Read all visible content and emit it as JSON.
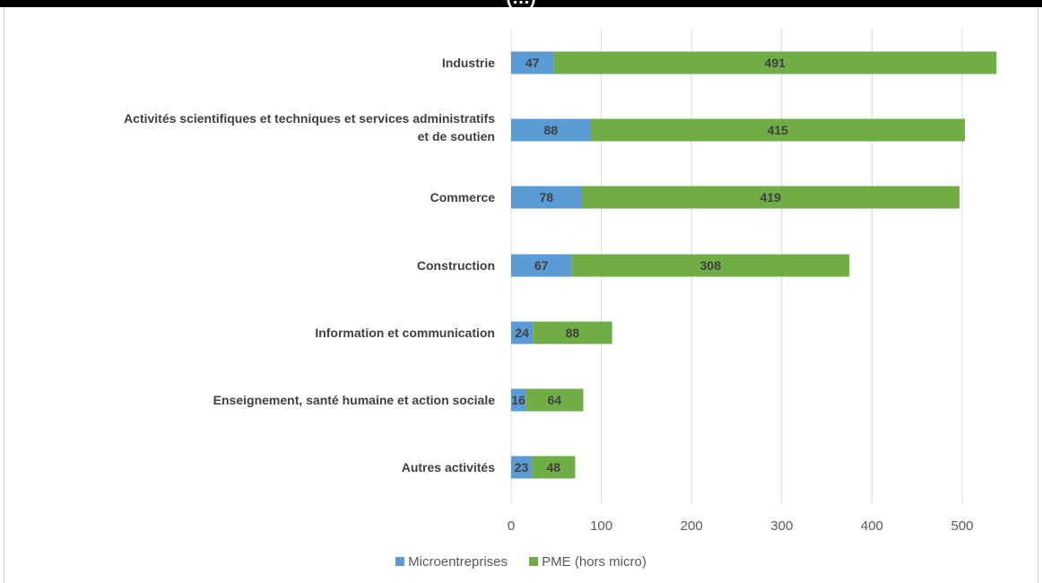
{
  "chart_data": {
    "type": "bar",
    "orientation": "horizontal",
    "stacked": true,
    "title": "(…)",
    "categories": [
      "Industrie",
      "Activités scientifiques et techniques et services administratifs et de soutien",
      "Commerce",
      "Construction",
      "Information et communication",
      "Enseignement, santé humaine et action sociale",
      "Autres activités"
    ],
    "series": [
      {
        "name": "Microentreprises",
        "color": "#5b9bd5",
        "values": [
          47,
          88,
          78,
          67,
          24,
          16,
          23
        ]
      },
      {
        "name": "PME (hors micro)",
        "color": "#70ad47",
        "values": [
          491,
          415,
          419,
          308,
          88,
          64,
          48
        ]
      }
    ],
    "xlim": [
      0,
      500
    ],
    "xticks": [
      0,
      100,
      200,
      300,
      400,
      500
    ],
    "grid": true,
    "data_labels": true,
    "legend_position": "bottom"
  }
}
